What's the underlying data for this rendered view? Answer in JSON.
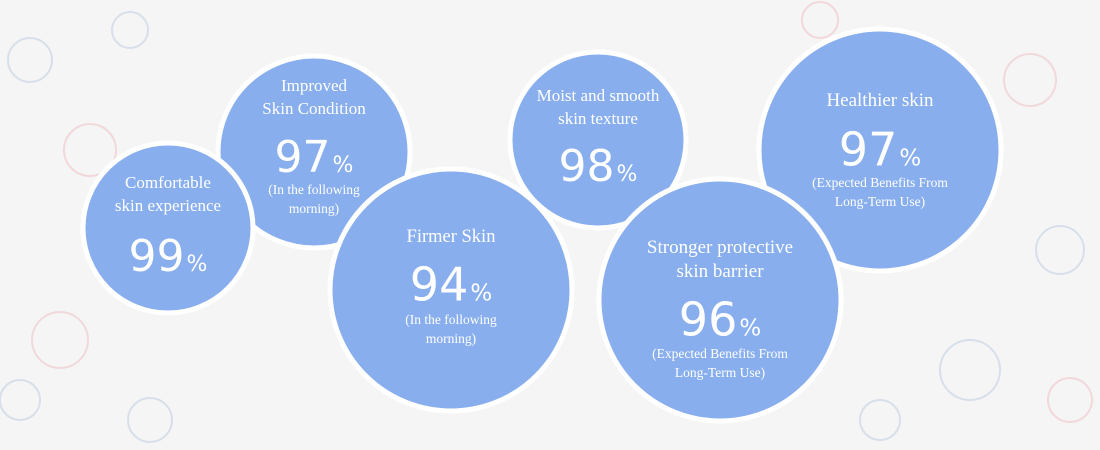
{
  "stats": [
    {
      "label": [
        "Improved",
        "Skin Condition"
      ],
      "value": 97,
      "unit": "%",
      "note": [
        "(In the following",
        "morning)"
      ]
    },
    {
      "label": [
        "Comfortable",
        "skin experience"
      ],
      "value": 99,
      "unit": "%"
    },
    {
      "label": [
        "Firmer Skin"
      ],
      "value": 94,
      "unit": "%",
      "note": [
        "(In the following",
        "morning)"
      ]
    },
    {
      "label": [
        "Moist and smooth",
        "skin texture"
      ],
      "value": 98,
      "unit": "%"
    },
    {
      "label": [
        "Healthier skin"
      ],
      "value": 97,
      "unit": "%",
      "note": [
        "(Expected Benefits From",
        "Long-Term Use)"
      ]
    },
    {
      "label": [
        "Stronger protective",
        "skin barrier"
      ],
      "value": 96,
      "unit": "%",
      "note": [
        "(Expected Benefits From",
        "Long-Term Use)"
      ]
    }
  ]
}
